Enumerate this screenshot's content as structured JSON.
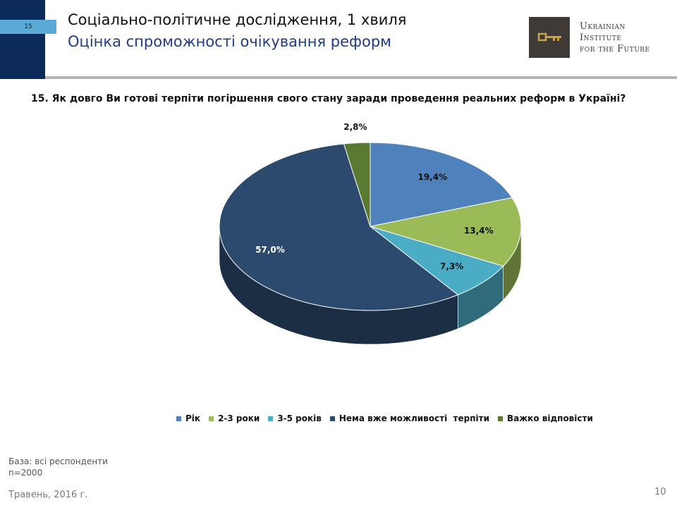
{
  "header": {
    "slide_badge": "15",
    "title_line1": "Соціально-політичне дослідження, 1 хвиля",
    "title_line2": "Оцінка спроможності очікування реформ",
    "logo": {
      "line1": "Ukrainian",
      "line2": "Institute",
      "line3": "for the Future",
      "icon": "key-icon"
    }
  },
  "question": "15. Як довго Ви готові терпіти погіршення свого стану заради проведення реальних реформ в Україні?",
  "chart_data": {
    "type": "pie",
    "style": "3d",
    "series": [
      {
        "name": "Рік",
        "value": 19.4,
        "label": "19,4%",
        "color": "#4f81bd"
      },
      {
        "name": "2-3 роки",
        "value": 13.4,
        "label": "13,4%",
        "color": "#9bbb59"
      },
      {
        "name": "3-5 років",
        "value": 7.3,
        "label": "7,3%",
        "color": "#4bacc6"
      },
      {
        "name": "Нема вже можливості  терпіти",
        "value": 57.0,
        "label": "57,0%",
        "color": "#2c4a6e"
      },
      {
        "name": "Важко відповісти",
        "value": 2.8,
        "label": "2,8%",
        "color": "#5a7a32"
      }
    ],
    "legend_position": "bottom"
  },
  "footer": {
    "base": "База: всі респонденти",
    "n": "n=2000",
    "date": "Травень, 2016 г.",
    "page": "10"
  }
}
